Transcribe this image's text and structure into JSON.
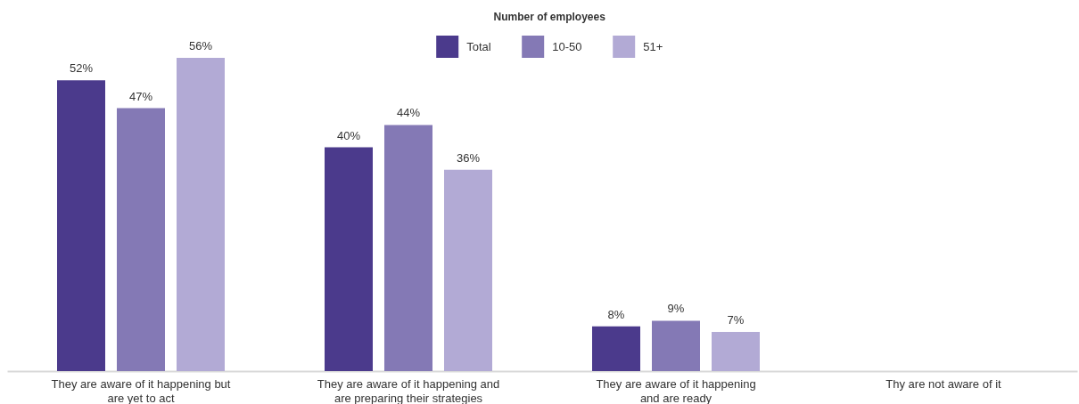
{
  "chart_data": {
    "type": "bar",
    "legend_title": "Number of employees",
    "legend": "top",
    "tick_labels": "x",
    "categories": [
      "They are aware of it happening but\nare yet to act",
      "They are aware of it happening and\nare preparing their strategies",
      "They are aware of it happening\nand are ready",
      "Thy are not aware of it"
    ],
    "series": [
      {
        "name": "Total",
        "color": "#4b3a8c",
        "values": [
          52,
          40,
          8,
          null
        ],
        "value_labels": [
          "52%",
          "40%",
          "8%",
          null
        ]
      },
      {
        "name": "10-50",
        "color": "#8479b5",
        "values": [
          47,
          44,
          9,
          null
        ],
        "value_labels": [
          "47%",
          "44%",
          "9%",
          null
        ]
      },
      {
        "name": "51+",
        "color": "#b2aad5",
        "values": [
          56,
          36,
          7,
          null
        ],
        "value_labels": [
          "56%",
          "36%",
          "7%",
          null
        ]
      }
    ]
  }
}
